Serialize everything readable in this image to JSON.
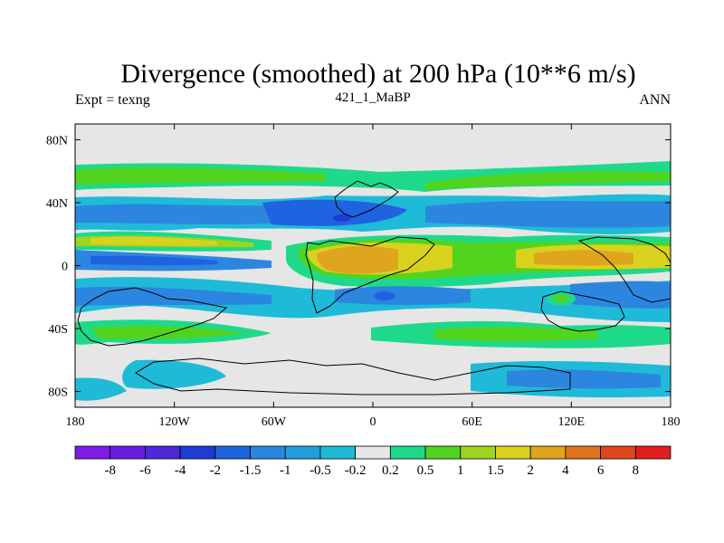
{
  "chart_data": {
    "type": "heatmap",
    "title": "Divergence (smoothed) at 200 hPa (10**6 m/s)",
    "subtitle_left": "Expt = texng",
    "subtitle_center": "421_1_MaBP",
    "subtitle_right": "ANN",
    "xlim": [
      -180,
      180
    ],
    "ylim": [
      -90,
      90
    ],
    "x_ticks": [
      -180,
      -120,
      -60,
      0,
      60,
      120,
      180
    ],
    "x_tick_labels": [
      "180",
      "120W",
      "60W",
      "0",
      "60E",
      "120E",
      "180"
    ],
    "y_ticks": [
      80,
      40,
      0,
      -40,
      -80
    ],
    "y_tick_labels": [
      "80N",
      "40N",
      "0",
      "40S",
      "80S"
    ],
    "colorbar": {
      "colors": [
        "#7F1BE6",
        "#6A1BE0",
        "#4F28D9",
        "#1E3BD6",
        "#1F63E0",
        "#2C86E0",
        "#1FA0DD",
        "#1FBAD8",
        "#E6E6E6",
        "#1FD98A",
        "#52D41E",
        "#9CD41E",
        "#D8D21E",
        "#E0A51E",
        "#E0721E",
        "#E0461E",
        "#E01E1E"
      ],
      "labels": [
        "-8",
        "-6",
        "-4",
        "-2",
        "-1.5",
        "-1",
        "-0.5",
        "-0.2",
        "0.2",
        "0.5",
        "1",
        "1.5",
        "2",
        "4",
        "6",
        "8"
      ]
    },
    "regions": [
      {
        "level": "-1",
        "lon": -100,
        "lat": 37,
        "dlon": 80,
        "dlat": 10
      },
      {
        "level": "-1",
        "lon": 0,
        "lat": 32,
        "dlon": 70,
        "dlat": 9
      },
      {
        "level": "-1",
        "lon": 150,
        "lat": 35,
        "dlon": 60,
        "dlat": 10
      },
      {
        "level": "-1",
        "lon": -140,
        "lat": 0,
        "dlon": 60,
        "dlat": 8
      },
      {
        "level": "-1",
        "lon": 60,
        "lat": -18,
        "dlon": 120,
        "dlat": 9
      },
      {
        "level": "-1",
        "lon": -70,
        "lat": -32,
        "dlon": 90,
        "dlat": 10
      },
      {
        "level": "-0.5",
        "lon": -150,
        "lat": -25,
        "dlon": 40,
        "dlat": 12
      },
      {
        "level": "0.5",
        "lon": -115,
        "lat": 20,
        "dlon": 70,
        "dlat": 6
      },
      {
        "level": "0.5",
        "lon": 60,
        "lat": 12,
        "dlon": 120,
        "dlat": 6
      },
      {
        "level": "0.5",
        "lon": -80,
        "lat": -46,
        "dlon": 60,
        "dlat": 8
      },
      {
        "level": "0.5",
        "lon": -100,
        "lat": 53,
        "dlon": 140,
        "dlat": 8
      },
      {
        "level": "2",
        "lon": -30,
        "lat": 0,
        "dlon": 40,
        "dlat": 10
      },
      {
        "level": "2",
        "lon": 110,
        "lat": 2,
        "dlon": 60,
        "dlat": 8
      },
      {
        "level": "-2",
        "lon": -115,
        "lat": 0,
        "dlon": 30,
        "dlat": 3
      },
      {
        "level": "-2",
        "lon": 0,
        "lat": -22,
        "dlon": 20,
        "dlat": 4
      }
    ]
  }
}
